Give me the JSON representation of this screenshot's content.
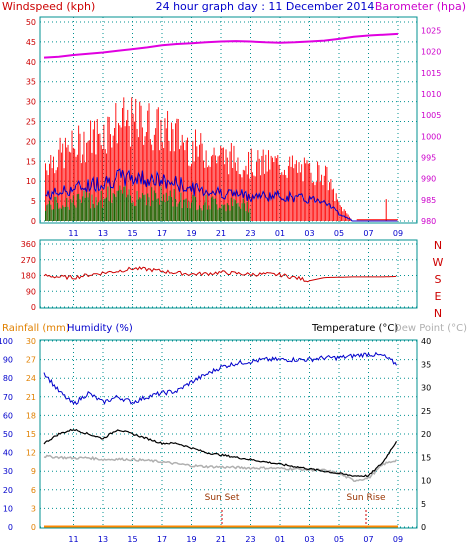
{
  "header": {
    "left_label": "Windspeed (kph)",
    "title": "24 hour graph day : 11 December 2014",
    "right_label": "Barometer (hpa)"
  },
  "panel3_labels": {
    "rainfall": "Rainfall (mm)",
    "humidity": "Humidity (%)",
    "temperature": "Temperature (°C)",
    "dewpoint": "Dew Point (°C)",
    "sunset": "Sun Set",
    "sunrise": "Sun Rise"
  },
  "colors": {
    "wind_gust": "#ff0000",
    "wind_avg": "#0000cc",
    "wind_low": "#007000",
    "barometer": "#e000e0",
    "direction": "#cc0000",
    "humidity": "#0000cc",
    "temperature": "#000000",
    "dewpoint": "#b0b0b0",
    "rainfall": "#ff8800",
    "grid": "#009090",
    "axis_red": "#cc0000",
    "axis_magenta": "#cc00cc",
    "axis_blue": "#0000cc",
    "axis_orange": "#e08000",
    "axis_green": "#006060"
  },
  "chart_data": [
    {
      "type": "line",
      "x_ticks": [
        "11",
        "13",
        "15",
        "17",
        "19",
        "21",
        "23",
        "01",
        "03",
        "05",
        "07",
        "09"
      ],
      "y_left_ticks": [
        "0",
        "5",
        "10",
        "15",
        "20",
        "25",
        "30",
        "35",
        "40",
        "45",
        "50"
      ],
      "y_right_ticks": [
        "980",
        "985",
        "990",
        "995",
        "1000",
        "1005",
        "1010",
        "1015",
        "1020",
        "1025"
      ],
      "ylim_left": [
        0,
        50
      ],
      "ylim_right": [
        980,
        1027
      ],
      "series": [
        {
          "name": "Windspeed (kph)",
          "x": [
            9,
            10,
            11,
            12,
            13,
            14,
            15,
            16,
            17,
            18,
            19,
            20,
            21,
            22,
            23,
            24,
            25,
            26,
            27,
            28,
            29,
            30,
            31,
            32,
            33
          ],
          "values": [
            14,
            16,
            18,
            20,
            22,
            24,
            24,
            24,
            22,
            21,
            18,
            17,
            16,
            15,
            14,
            14,
            14,
            13,
            12,
            12,
            4,
            0,
            0,
            0,
            0
          ]
        },
        {
          "name": "Barometer (hpa)",
          "x": [
            9,
            10,
            11,
            12,
            13,
            14,
            15,
            16,
            17,
            18,
            19,
            20,
            21,
            22,
            23,
            24,
            25,
            26,
            27,
            28,
            29,
            30,
            31,
            32,
            33
          ],
          "values": [
            1018.6,
            1018.8,
            1019.2,
            1019.5,
            1019.8,
            1020.2,
            1020.6,
            1021.0,
            1021.5,
            1021.8,
            1022.0,
            1022.2,
            1022.4,
            1022.5,
            1022.4,
            1022.2,
            1022.1,
            1022.2,
            1022.4,
            1022.6,
            1023.0,
            1023.5,
            1023.8,
            1024.0,
            1024.2
          ]
        }
      ]
    },
    {
      "type": "line",
      "x_ticks": [
        "11",
        "13",
        "15",
        "17",
        "19",
        "21",
        "23",
        "01",
        "03",
        "05",
        "07",
        "09"
      ],
      "y_ticks": [
        "0",
        "90",
        "180",
        "270",
        "360"
      ],
      "y_right_labels": [
        "N",
        "W",
        "S",
        "E",
        "N"
      ],
      "ylim": [
        0,
        360
      ],
      "series": [
        {
          "name": "Wind direction",
          "x": [
            9,
            10,
            11,
            12,
            13,
            14,
            15,
            16,
            17,
            18,
            19,
            20,
            21,
            22,
            23,
            24,
            25,
            26,
            27,
            28,
            29,
            30,
            31,
            32,
            33
          ],
          "values": [
            180,
            172,
            168,
            183,
            195,
            205,
            220,
            215,
            205,
            195,
            188,
            190,
            198,
            192,
            186,
            188,
            184,
            168,
            150,
            168,
            170,
            172,
            172,
            172,
            175
          ]
        }
      ]
    },
    {
      "type": "line",
      "x_ticks": [
        "11",
        "13",
        "15",
        "17",
        "19",
        "21",
        "23",
        "01",
        "03",
        "05",
        "07",
        "09"
      ],
      "y_left_ticks_humidity": [
        "0",
        "10",
        "20",
        "30",
        "40",
        "50",
        "60",
        "70",
        "80",
        "90",
        "100"
      ],
      "y_left_ticks_rainfall": [
        "0",
        "3",
        "6",
        "9",
        "12",
        "15",
        "18",
        "21",
        "24",
        "27",
        "30"
      ],
      "y_right_ticks": [
        "0",
        "5",
        "10",
        "15",
        "20",
        "25",
        "30",
        "35",
        "40"
      ],
      "ylim_humidity": [
        0,
        100
      ],
      "ylim_temperature": [
        0,
        40
      ],
      "series": [
        {
          "name": "Humidity (%)",
          "x": [
            9,
            10,
            11,
            12,
            13,
            14,
            15,
            16,
            17,
            18,
            19,
            20,
            21,
            22,
            23,
            24,
            25,
            26,
            27,
            28,
            29,
            30,
            31,
            32,
            33
          ],
          "values": [
            83,
            73,
            66,
            72,
            67,
            70,
            67,
            70,
            72,
            73,
            78,
            82,
            86,
            88,
            89,
            90,
            90,
            90,
            90,
            91,
            91,
            92,
            93,
            92,
            87
          ]
        },
        {
          "name": "Temperature (°C)",
          "x": [
            9,
            10,
            11,
            12,
            13,
            14,
            15,
            16,
            17,
            18,
            19,
            20,
            21,
            22,
            23,
            24,
            25,
            26,
            27,
            28,
            29,
            30,
            31,
            32,
            33
          ],
          "values": [
            18,
            20,
            21,
            20,
            19,
            21,
            20,
            19,
            18,
            18,
            17,
            16,
            15.5,
            15,
            14.5,
            14,
            13.5,
            13,
            12.5,
            12,
            11.5,
            11,
            11,
            14,
            19
          ]
        },
        {
          "name": "Dew Point (°C)",
          "x": [
            9,
            10,
            11,
            12,
            13,
            14,
            15,
            16,
            17,
            18,
            19,
            20,
            21,
            22,
            23,
            24,
            25,
            26,
            27,
            28,
            29,
            30,
            31,
            32,
            33
          ],
          "values": [
            15.2,
            15,
            14.8,
            14.9,
            14.5,
            14.6,
            14.5,
            14.3,
            14.0,
            13.6,
            13.2,
            13.0,
            12.9,
            12.8,
            12.7,
            12.7,
            12.6,
            12.5,
            12.3,
            12.2,
            11.5,
            10,
            10.5,
            13.5,
            14.5
          ]
        },
        {
          "name": "Rainfall (mm)",
          "x": [
            9,
            33
          ],
          "values": [
            0,
            0
          ]
        }
      ]
    }
  ]
}
